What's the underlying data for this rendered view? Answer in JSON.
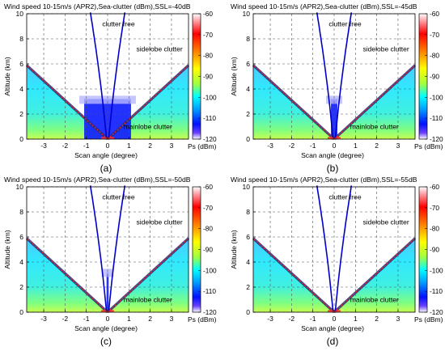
{
  "figure": {
    "colorbar_label": "Ps (dBm)",
    "colorbar_ticks": [
      -60,
      -70,
      -80,
      -90,
      -100,
      -110,
      -120
    ],
    "colorbar_colors": [
      "#ffffff",
      "#5a00ff",
      "#0000ff",
      "#00a0ff",
      "#00ffff",
      "#a0ff40",
      "#ffff00",
      "#ff8000",
      "#ff0000",
      "#900000"
    ],
    "clutter_free_label": "clutter free",
    "sidelobe_label": "sidelobe  clutter",
    "mainlobe_label": "mainlobe clutter"
  },
  "chart_data": [
    {
      "type": "heatmap",
      "panel_label": "(a)",
      "title": "Wind speed 10-15m/s (APR2),Sea-clutter (dBm),SSL=-40dB",
      "xlabel": "Scan angle (degree)",
      "ylabel": "Altitude (km)",
      "xticks": [
        -3,
        -2,
        -1,
        0,
        1,
        2,
        3
      ],
      "yticks": [
        0,
        2,
        4,
        6,
        8,
        10
      ],
      "xlim": [
        -3.8,
        3.8
      ],
      "ylim": [
        0,
        10
      ],
      "clim": [
        -120,
        -60
      ],
      "sidelobe_block": {
        "x": [
          -1.1,
          1.1
        ],
        "y": [
          0,
          3.2
        ]
      },
      "regions": [
        "clutter free",
        "sidelobe clutter",
        "mainlobe clutter"
      ]
    },
    {
      "type": "heatmap",
      "panel_label": "(b)",
      "title": "Wind speed 10-15m/s (APR2),Sea-clutter (dBm),SSL=-45dB",
      "xlabel": "Scan angle (degree)",
      "ylabel": "Altitude (km)",
      "xticks": [
        -3,
        -2,
        -1,
        0,
        1,
        2,
        3
      ],
      "yticks": [
        0,
        2,
        4,
        6,
        8,
        10
      ],
      "xlim": [
        -3.8,
        3.8
      ],
      "ylim": [
        0,
        10
      ],
      "clim": [
        -120,
        -60
      ],
      "sidelobe_block": {
        "x": [
          -0.15,
          0.15
        ],
        "y": [
          0,
          3.2
        ]
      },
      "regions": [
        "clutter free",
        "sidelobe clutter",
        "mainlobe clutter"
      ]
    },
    {
      "type": "heatmap",
      "panel_label": "(c)",
      "title": "Wind speed 10-15m/s (APR2),Sea-clutter (dBm),SSL=-50dB",
      "xlabel": "Scan angle (degree)",
      "ylabel": "Altitude (km)",
      "xticks": [
        -3,
        -2,
        -1,
        0,
        1,
        2,
        3
      ],
      "yticks": [
        0,
        2,
        4,
        6,
        8,
        10
      ],
      "xlim": [
        -3.8,
        3.8
      ],
      "ylim": [
        0,
        10
      ],
      "clim": [
        -120,
        -60
      ],
      "sidelobe_block": {
        "x": [
          -0.05,
          0.05
        ],
        "y": [
          0,
          3.2
        ]
      },
      "regions": [
        "clutter free",
        "sidelobe clutter",
        "mainlobe clutter"
      ]
    },
    {
      "type": "heatmap",
      "panel_label": "(d)",
      "title": "Wind speed 10-15m/s (APR2),Sea-clutter (dBm),SSL=-55dB",
      "xlabel": "Scan angle (degree)",
      "ylabel": "Altitude (km)",
      "xticks": [
        -3,
        -2,
        -1,
        0,
        1,
        2,
        3
      ],
      "yticks": [
        0,
        2,
        4,
        6,
        8,
        10
      ],
      "xlim": [
        -3.8,
        3.8
      ],
      "ylim": [
        0,
        10
      ],
      "clim": [
        -120,
        -60
      ],
      "sidelobe_block": null,
      "regions": [
        "clutter free",
        "sidelobe clutter",
        "mainlobe clutter"
      ]
    }
  ]
}
